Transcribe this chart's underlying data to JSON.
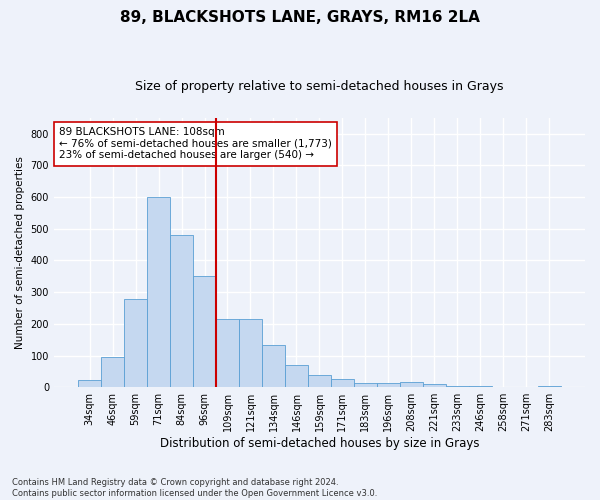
{
  "title": "89, BLACKSHOTS LANE, GRAYS, RM16 2LA",
  "subtitle": "Size of property relative to semi-detached houses in Grays",
  "xlabel": "Distribution of semi-detached houses by size in Grays",
  "ylabel": "Number of semi-detached properties",
  "categories": [
    "34sqm",
    "46sqm",
    "59sqm",
    "71sqm",
    "84sqm",
    "96sqm",
    "109sqm",
    "121sqm",
    "134sqm",
    "146sqm",
    "159sqm",
    "171sqm",
    "183sqm",
    "196sqm",
    "208sqm",
    "221sqm",
    "233sqm",
    "246sqm",
    "258sqm",
    "271sqm",
    "283sqm"
  ],
  "values": [
    22,
    96,
    277,
    601,
    481,
    350,
    215,
    215,
    133,
    70,
    40,
    25,
    13,
    13,
    17,
    10,
    5,
    5,
    0,
    0,
    5
  ],
  "bar_color": "#c5d8f0",
  "bar_edge_color": "#5a9fd4",
  "vline_x_index": 6,
  "vline_color": "#cc0000",
  "annotation_text": "89 BLACKSHOTS LANE: 108sqm\n← 76% of semi-detached houses are smaller (1,773)\n23% of semi-detached houses are larger (540) →",
  "annotation_box_color": "#ffffff",
  "annotation_box_edge_color": "#cc0000",
  "ylim": [
    0,
    850
  ],
  "yticks": [
    0,
    100,
    200,
    300,
    400,
    500,
    600,
    700,
    800
  ],
  "background_color": "#eef2fa",
  "grid_color": "#ffffff",
  "footnote": "Contains HM Land Registry data © Crown copyright and database right 2024.\nContains public sector information licensed under the Open Government Licence v3.0.",
  "title_fontsize": 11,
  "subtitle_fontsize": 9,
  "xlabel_fontsize": 8.5,
  "ylabel_fontsize": 7.5,
  "tick_fontsize": 7,
  "annotation_fontsize": 7.5,
  "footnote_fontsize": 6
}
